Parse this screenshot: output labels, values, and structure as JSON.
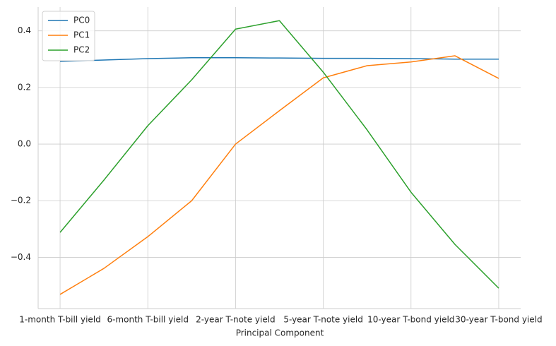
{
  "chart_data": {
    "type": "line",
    "xlabel": "Principal Component",
    "categories": [
      "1-month T-bill yield",
      null,
      "6-month T-bill yield",
      null,
      "2-year T-note yield",
      null,
      "5-year T-note yield",
      null,
      "10-year T-bond yield",
      null,
      "30-year T-bond yield"
    ],
    "series": [
      {
        "name": "PC0",
        "color": "#1f77b4",
        "values": [
          0.292,
          0.297,
          0.302,
          0.305,
          0.305,
          0.304,
          0.303,
          0.303,
          0.302,
          0.3,
          0.3
        ]
      },
      {
        "name": "PC1",
        "color": "#ff7f0e",
        "values": [
          -0.531,
          -0.439,
          -0.327,
          -0.2,
          0.0,
          0.118,
          0.234,
          0.277,
          0.29,
          0.312,
          0.232
        ]
      },
      {
        "name": "PC2",
        "color": "#2ca02c",
        "values": [
          -0.312,
          -0.127,
          0.065,
          0.227,
          0.406,
          0.436,
          0.254,
          0.05,
          -0.17,
          -0.354,
          -0.509
        ]
      }
    ],
    "ylim": [
      -0.581,
      0.484
    ],
    "yticks": [
      {
        "value": -0.4,
        "label": "−0.4"
      },
      {
        "value": -0.2,
        "label": "−0.2"
      },
      {
        "value": 0,
        "label": "0.0"
      },
      0.2,
      0.4
    ],
    "grid": true,
    "legend": "upper left"
  }
}
